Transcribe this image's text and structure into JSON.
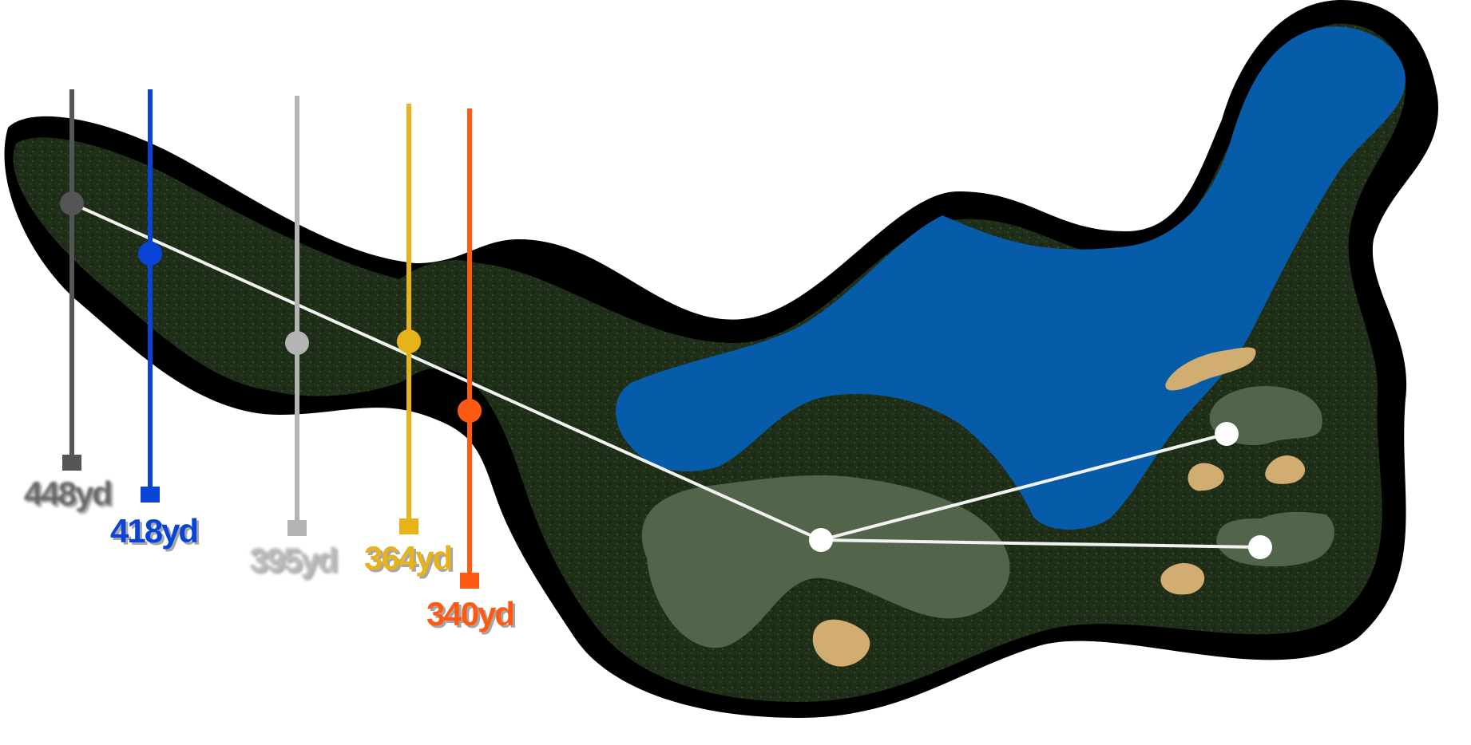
{
  "hole": {
    "tee_markers": [
      {
        "id": "black",
        "color": "#555555",
        "distance_label": "448yd",
        "label_visible": false
      },
      {
        "id": "blue",
        "color": "#0a44d6",
        "distance_label": "418yd",
        "label_visible": true
      },
      {
        "id": "silver",
        "color": "#b4b4b4",
        "distance_label": "395yd",
        "label_visible": false
      },
      {
        "id": "gold",
        "color": "#e6b41a",
        "distance_label": "364yd",
        "label_visible": true
      },
      {
        "id": "orange",
        "color": "#ff5a14",
        "distance_label": "340yd",
        "label_visible": true
      }
    ],
    "colors": {
      "rough": "#1f2e18",
      "rough_shadow": "#000000",
      "fairway": "#52654a",
      "water": "#065ca8",
      "sand": "#d2ad72",
      "route_line": "#f2f2f2"
    },
    "hazards": {
      "water_icon": "water-hazard",
      "bunker_icon": "sand-bunker"
    }
  }
}
